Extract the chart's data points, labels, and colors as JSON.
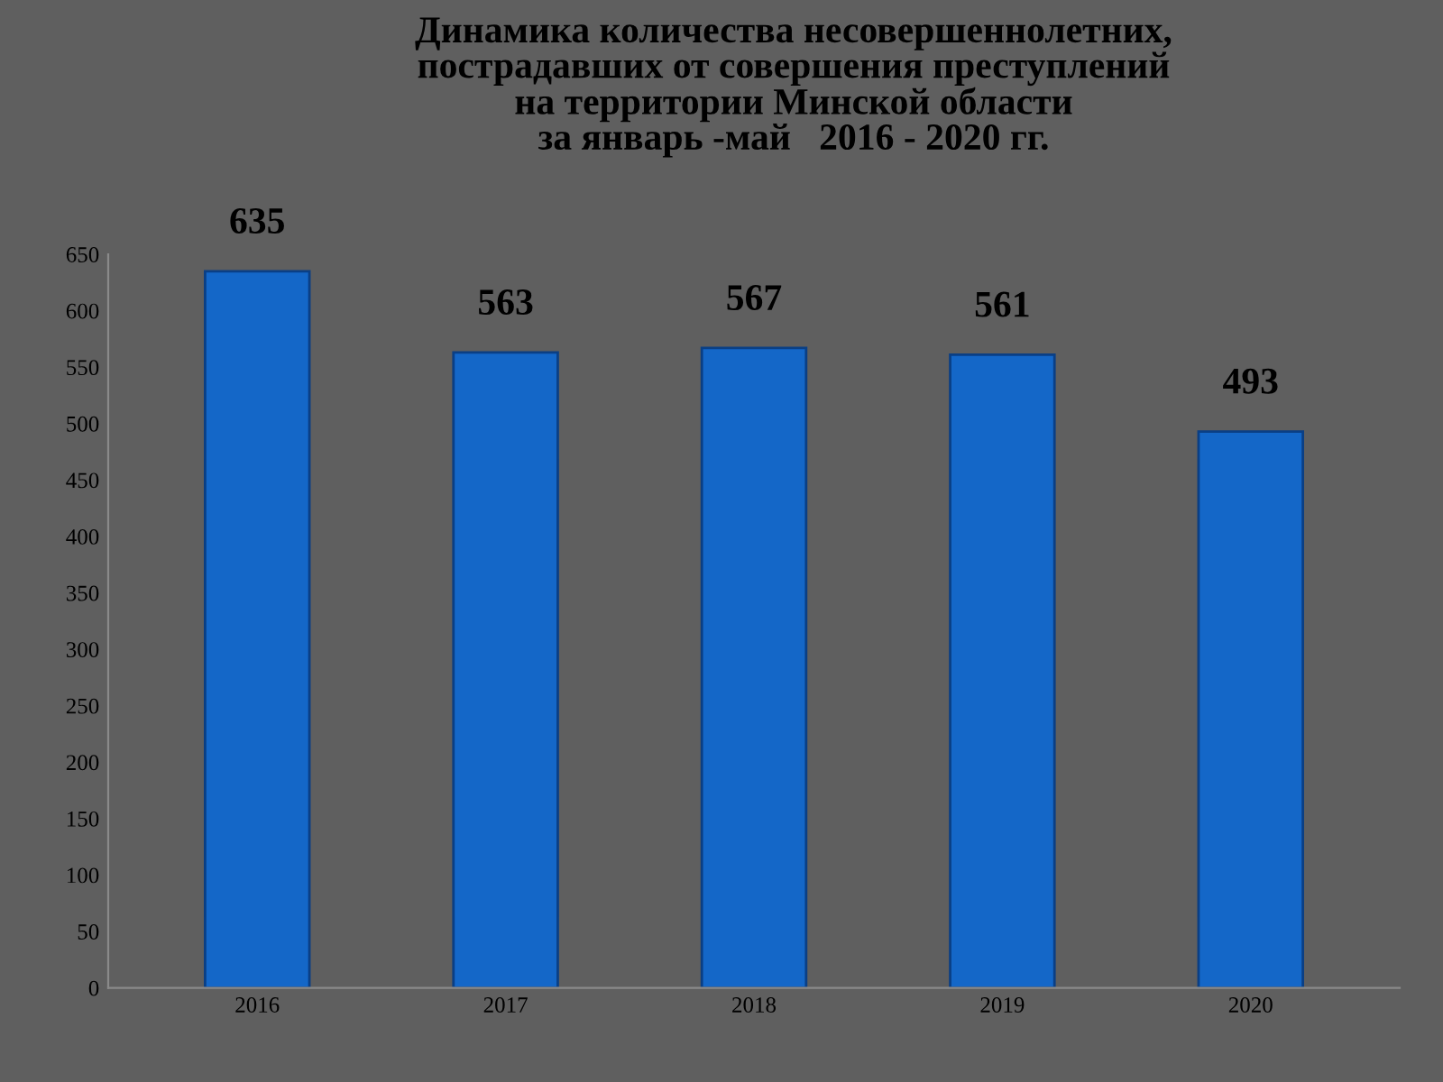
{
  "chart_data": {
    "type": "bar",
    "title": "Динамика количества несовершеннолетних,\nпострадавших от совершения преступлений\nна территории Минской области\nза январь -май   2016 - 2020 гг.",
    "categories": [
      "2016",
      "2017",
      "2018",
      "2019",
      "2020"
    ],
    "values": [
      635,
      563,
      567,
      561,
      493
    ],
    "color": "#1467c8",
    "ylim": [
      0,
      650
    ],
    "yticks": [
      0,
      50,
      100,
      150,
      200,
      250,
      300,
      350,
      400,
      450,
      500,
      550,
      600,
      650
    ],
    "grid": false,
    "data_labels": true
  }
}
